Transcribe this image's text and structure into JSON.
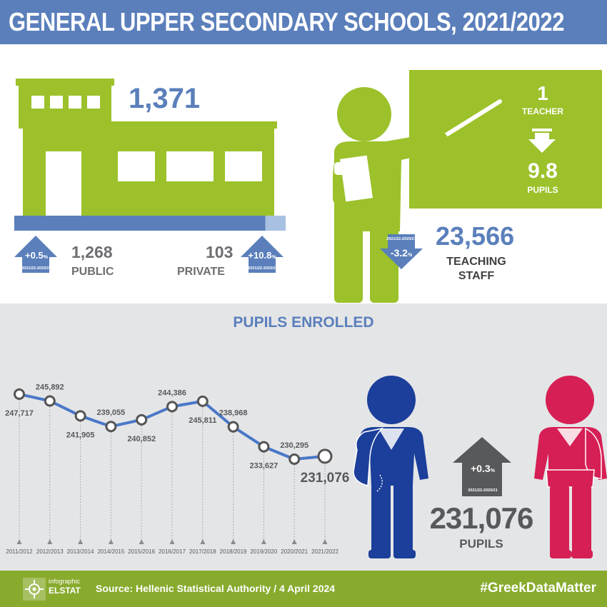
{
  "header": {
    "title": "GENERAL UPPER SECONDARY SCHOOLS, 2021/2022"
  },
  "schools": {
    "total": "1,371",
    "public": {
      "value": "1,268",
      "label": "PUBLIC",
      "change": "+0.5",
      "unit": "%",
      "period": "2021/22-2020/21",
      "share": 0.925
    },
    "private": {
      "value": "103",
      "label": "PRIVATE",
      "change": "+10.8",
      "unit": "%",
      "period": "2021/22-2020/21",
      "share": 0.075
    }
  },
  "teachers": {
    "ratio_teacher": "1",
    "ratio_teacher_label": "TEACHER",
    "ratio_pupils": "9.8",
    "ratio_pupils_label": "PUPILS",
    "staff_value": "23,566",
    "staff_label_1": "TEACHING",
    "staff_label_2": "STAFF",
    "change": "-3.2",
    "unit": "%",
    "period": "2021/22-2020/21"
  },
  "pupils": {
    "section_title": "PUPILS ENROLLED",
    "total": "231,076",
    "label": "PUPILS",
    "change": "+0.3",
    "unit": "%",
    "period": "2021/22-2020/21"
  },
  "chart_data": {
    "type": "line",
    "categories": [
      "2011/2012",
      "2012/2013",
      "2013/2014",
      "2014/2015",
      "2015/2016",
      "2016/2017",
      "2017/2018",
      "2018/2019",
      "2019/2020",
      "2020/2021",
      "2021/2022"
    ],
    "values": [
      247717,
      245892,
      241905,
      239055,
      240852,
      244386,
      245811,
      238968,
      233627,
      230295,
      231076
    ],
    "data_labels": [
      "247,717",
      "245,892",
      "241,905",
      "239,055",
      "240,852",
      "244,386",
      "245,811",
      "238,968",
      "233,627",
      "230,295",
      "231,076"
    ],
    "title": "PUPILS ENROLLED",
    "xlabel": "",
    "ylabel": "",
    "ylim": [
      228000,
      250000
    ],
    "colors": {
      "line": "#4a78c8",
      "marker_fill": "#ffffff",
      "marker_stroke": "#555555"
    }
  },
  "footer": {
    "logo_line1": "infographic",
    "logo_line2": "ELSTAT",
    "source": "Source: Hellenic Statistical Authority / 4 April 2024",
    "hashtag": "#GreekDataMatter"
  },
  "colors": {
    "green": "#9cc12b",
    "blue": "#5a7fbb",
    "light_blue": "#a8c1e2",
    "gray_text": "#6d6e71",
    "pupil_blue": "#1b3f9a",
    "pupil_red": "#d61f55",
    "arrow_gray": "#58595b"
  }
}
